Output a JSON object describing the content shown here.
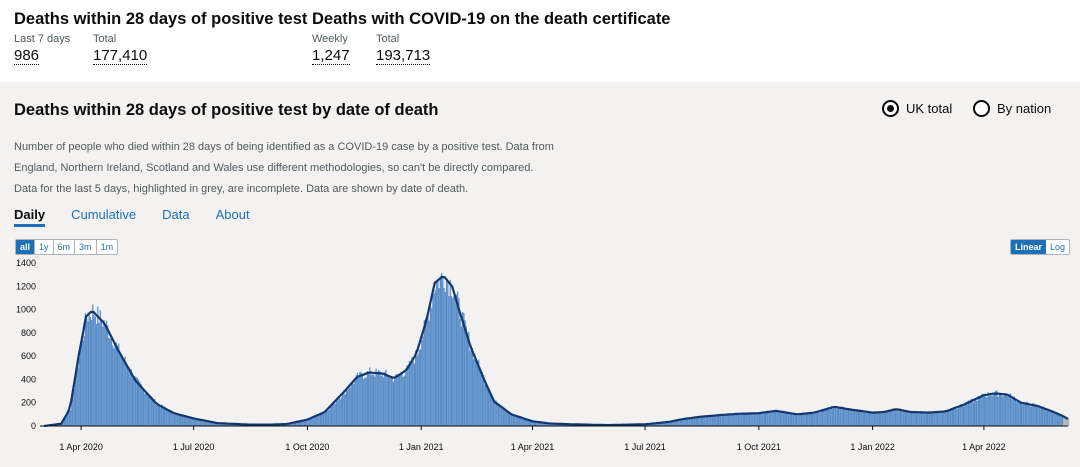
{
  "headlines": [
    {
      "title": "Deaths within 28 days of positive test",
      "stats": [
        {
          "label": "Last 7 days",
          "value": "986"
        },
        {
          "label": "Total",
          "value": "177,410"
        }
      ]
    },
    {
      "title": "Deaths with COVID-19 on the death certificate",
      "stats": [
        {
          "label": "Weekly",
          "value": "1,247"
        },
        {
          "label": "Total",
          "value": "193,713"
        }
      ]
    }
  ],
  "panel": {
    "title": "Deaths within 28 days of positive test by date of death",
    "radios": [
      {
        "label": "UK total",
        "selected": true
      },
      {
        "label": "By nation",
        "selected": false
      }
    ],
    "description": "Number of people who died within 28 days of being identified as a COVID-19 case by a positive test. Data from England, Northern Ireland, Scotland and Wales use different methodologies, so can't be directly compared. Data for the last 5 days, highlighted in grey, are incomplete. Data are shown by date of death.",
    "tabs": [
      "Daily",
      "Cumulative",
      "Data",
      "About"
    ],
    "active_tab": "Daily",
    "range_buttons": [
      "all",
      "1y",
      "6m",
      "3m",
      "1m"
    ],
    "range_selected": "all",
    "scale_buttons": [
      "Linear",
      "Log"
    ],
    "scale_selected": "Linear"
  },
  "colors": {
    "bar": "#5a8ec8",
    "line": "#12366e",
    "incomplete": "#b1b4b6",
    "accent": "#1d70b8"
  },
  "chart_data": {
    "type": "bar",
    "title": "Deaths within 28 days of positive test by date of death",
    "ylim": [
      0,
      1400
    ],
    "yticks": [
      0,
      200,
      400,
      600,
      800,
      1000,
      1200,
      1400
    ],
    "xlim": [
      "2020-03-02",
      "2022-06-08"
    ],
    "xticks": [
      "1 Apr 2020",
      "1 Jul 2020",
      "1 Oct 2020",
      "1 Jan 2021",
      "1 Apr 2021",
      "1 Jul 2021",
      "1 Oct 2021",
      "1 Jan 2022",
      "1 Apr 2022"
    ],
    "series": [
      {
        "name": "Daily deaths",
        "type": "bar"
      },
      {
        "name": "Rolling average",
        "type": "line"
      }
    ],
    "x": [
      "2020-03-02",
      "2020-03-16",
      "2020-03-23",
      "2020-03-30",
      "2020-04-05",
      "2020-04-10",
      "2020-04-20",
      "2020-05-01",
      "2020-05-15",
      "2020-06-01",
      "2020-06-15",
      "2020-07-01",
      "2020-07-20",
      "2020-08-15",
      "2020-09-01",
      "2020-09-15",
      "2020-10-01",
      "2020-10-15",
      "2020-11-01",
      "2020-11-10",
      "2020-11-20",
      "2020-12-01",
      "2020-12-10",
      "2020-12-20",
      "2020-12-28",
      "2021-01-05",
      "2021-01-12",
      "2021-01-19",
      "2021-01-26",
      "2021-02-02",
      "2021-02-10",
      "2021-02-20",
      "2021-03-01",
      "2021-03-15",
      "2021-04-01",
      "2021-04-15",
      "2021-05-01",
      "2021-06-01",
      "2021-07-01",
      "2021-07-20",
      "2021-08-01",
      "2021-08-15",
      "2021-09-01",
      "2021-09-15",
      "2021-10-01",
      "2021-10-15",
      "2021-11-01",
      "2021-11-15",
      "2021-12-01",
      "2021-12-15",
      "2022-01-01",
      "2022-01-10",
      "2022-01-20",
      "2022-02-01",
      "2022-02-15",
      "2022-03-01",
      "2022-03-15",
      "2022-04-01",
      "2022-04-10",
      "2022-04-20",
      "2022-05-01",
      "2022-05-15",
      "2022-05-25",
      "2022-06-03",
      "2022-06-08"
    ],
    "values": [
      0,
      20,
      150,
      600,
      940,
      990,
      880,
      650,
      390,
      190,
      110,
      65,
      25,
      12,
      12,
      18,
      55,
      120,
      310,
      420,
      460,
      450,
      410,
      480,
      620,
      900,
      1230,
      1290,
      1200,
      950,
      680,
      420,
      210,
      100,
      40,
      22,
      15,
      8,
      15,
      35,
      60,
      80,
      95,
      105,
      110,
      130,
      100,
      115,
      165,
      140,
      115,
      120,
      145,
      120,
      115,
      125,
      180,
      265,
      280,
      270,
      200,
      170,
      130,
      90,
      60
    ]
  }
}
